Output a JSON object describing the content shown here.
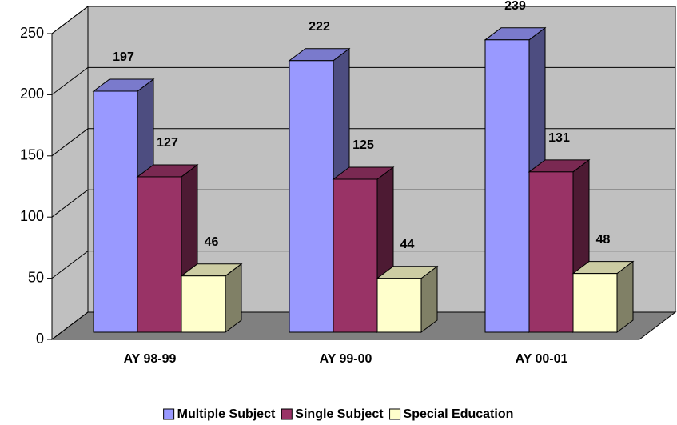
{
  "chart_data": {
    "type": "bar3d",
    "categories": [
      "AY 98-99",
      "AY 99-00",
      "AY 00-01"
    ],
    "series": [
      {
        "name": "Multiple Subject",
        "color": "#9999ff",
        "values": [
          197,
          222,
          239
        ]
      },
      {
        "name": "Single Subject",
        "color": "#993366",
        "values": [
          127,
          125,
          131
        ]
      },
      {
        "name": "Special Education",
        "color": "#ffffcc",
        "values": [
          46,
          44,
          48
        ]
      }
    ],
    "ylim": [
      0,
      250
    ],
    "yticks": [
      0,
      50,
      100,
      150,
      200,
      250
    ],
    "grid": true,
    "legend": "bottom"
  }
}
